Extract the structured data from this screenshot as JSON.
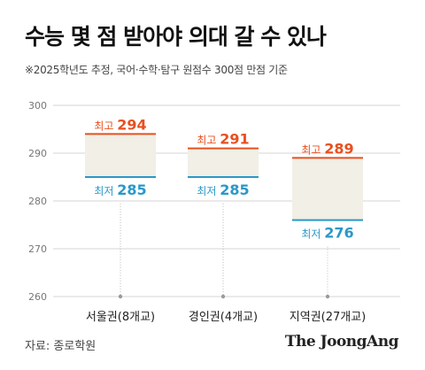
{
  "header": {
    "title": "수능 몇 점 받아야 의대 갈 수 있나",
    "subtitle": "※2025학년도 추정, 국어·수학·탐구 원점수 300점 만점 기준"
  },
  "footer": {
    "source": "자료: 종로학원",
    "brand": "The JoongAng"
  },
  "colors": {
    "max": "#e8501f",
    "min": "#2a98c8",
    "band": "#f2efe6",
    "grid": "#d6d6d6",
    "axis_text": "#777777"
  },
  "chart_data": {
    "type": "bar",
    "title": "수능 몇 점 받아야 의대 갈 수 있나",
    "ylim": [
      260,
      300
    ],
    "yticks": [
      260,
      270,
      280,
      290,
      300
    ],
    "grid": true,
    "max_label": "최고",
    "min_label": "최저",
    "categories": [
      "서울권(8개교)",
      "경인권(4개교)",
      "지역권(27개교)"
    ],
    "series": [
      {
        "name": "최고",
        "values": [
          294,
          291,
          289
        ]
      },
      {
        "name": "최저",
        "values": [
          285,
          285,
          276
        ]
      }
    ]
  }
}
